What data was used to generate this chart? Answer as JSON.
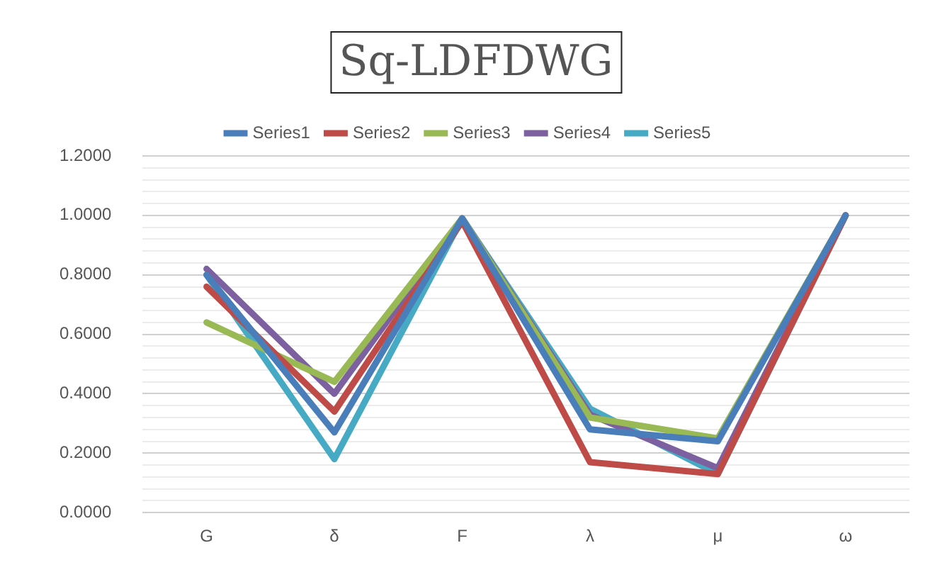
{
  "chart_data": {
    "type": "line",
    "title": "Sq-LDFDWG",
    "categories": [
      "G",
      "δ",
      "F",
      "λ",
      "μ",
      "ω"
    ],
    "series": [
      {
        "name": "Series1",
        "color": "#4a7ebb",
        "values": [
          0.8,
          0.27,
          0.99,
          0.28,
          0.24,
          1.0
        ]
      },
      {
        "name": "Series2",
        "color": "#be4b48",
        "values": [
          0.76,
          0.34,
          0.98,
          0.17,
          0.13,
          1.0
        ]
      },
      {
        "name": "Series3",
        "color": "#98b954",
        "values": [
          0.64,
          0.44,
          0.99,
          0.32,
          0.25,
          1.0
        ]
      },
      {
        "name": "Series4",
        "color": "#7d60a0",
        "values": [
          0.82,
          0.4,
          0.99,
          0.33,
          0.15,
          1.0
        ]
      },
      {
        "name": "Series5",
        "color": "#46aac5",
        "values": [
          0.8,
          0.18,
          0.99,
          0.35,
          0.13,
          1.0
        ]
      }
    ],
    "ylim": [
      0,
      1.2
    ],
    "yticks": [
      {
        "value": 0,
        "label": "0.0000"
      },
      {
        "value": 0.04,
        "label": null
      },
      {
        "value": 0.08,
        "label": null
      },
      {
        "value": 0.12,
        "label": null
      },
      {
        "value": 0.16,
        "label": null
      },
      {
        "value": 0.2,
        "label": "0.2000"
      },
      {
        "value": 0.24,
        "label": null
      },
      {
        "value": 0.28,
        "label": null
      },
      {
        "value": 0.32,
        "label": null
      },
      {
        "value": 0.36,
        "label": null
      },
      {
        "value": 0.4,
        "label": "0.4000"
      },
      {
        "value": 0.44,
        "label": null
      },
      {
        "value": 0.48,
        "label": null
      },
      {
        "value": 0.52,
        "label": null
      },
      {
        "value": 0.56,
        "label": null
      },
      {
        "value": 0.6,
        "label": "0.6000"
      },
      {
        "value": 0.64,
        "label": null
      },
      {
        "value": 0.68,
        "label": null
      },
      {
        "value": 0.72,
        "label": null
      },
      {
        "value": 0.76,
        "label": null
      },
      {
        "value": 0.8,
        "label": "0.8000"
      },
      {
        "value": 0.84,
        "label": null
      },
      {
        "value": 0.88,
        "label": null
      },
      {
        "value": 0.92,
        "label": null
      },
      {
        "value": 0.96,
        "label": null
      },
      {
        "value": 1.0,
        "label": "1.0000"
      },
      {
        "value": 1.04,
        "label": null
      },
      {
        "value": 1.08,
        "label": null
      },
      {
        "value": 1.12,
        "label": null
      },
      {
        "value": 1.16,
        "label": null
      },
      {
        "value": 1.2,
        "label": "1.2000"
      }
    ],
    "grid": "y",
    "legend": "top",
    "marker": "none",
    "line_style": "solid"
  }
}
